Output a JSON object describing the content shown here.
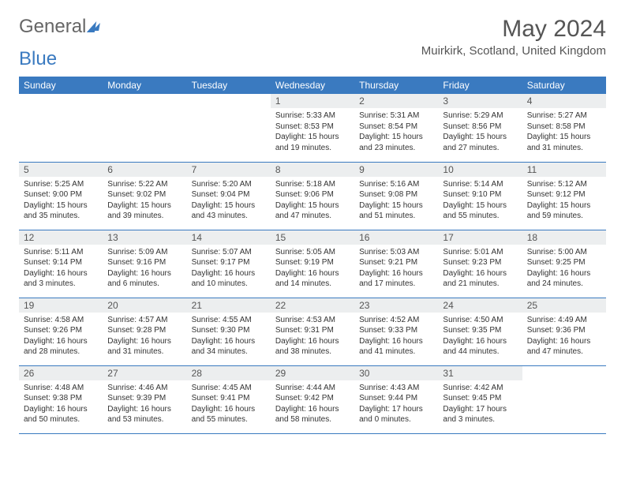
{
  "logo": {
    "part1": "General",
    "part2": "Blue"
  },
  "title": "May 2024",
  "location": "Muirkirk, Scotland, United Kingdom",
  "colors": {
    "accent": "#3a7ac0",
    "headerbg": "#3a7ac0",
    "daynum_bg": "#eceeef",
    "text": "#333333"
  },
  "weekdays": [
    "Sunday",
    "Monday",
    "Tuesday",
    "Wednesday",
    "Thursday",
    "Friday",
    "Saturday"
  ],
  "grid": [
    [
      {
        "n": "",
        "sr": "",
        "ss": "",
        "dl": ""
      },
      {
        "n": "",
        "sr": "",
        "ss": "",
        "dl": ""
      },
      {
        "n": "",
        "sr": "",
        "ss": "",
        "dl": ""
      },
      {
        "n": "1",
        "sr": "Sunrise: 5:33 AM",
        "ss": "Sunset: 8:53 PM",
        "dl": "Daylight: 15 hours and 19 minutes."
      },
      {
        "n": "2",
        "sr": "Sunrise: 5:31 AM",
        "ss": "Sunset: 8:54 PM",
        "dl": "Daylight: 15 hours and 23 minutes."
      },
      {
        "n": "3",
        "sr": "Sunrise: 5:29 AM",
        "ss": "Sunset: 8:56 PM",
        "dl": "Daylight: 15 hours and 27 minutes."
      },
      {
        "n": "4",
        "sr": "Sunrise: 5:27 AM",
        "ss": "Sunset: 8:58 PM",
        "dl": "Daylight: 15 hours and 31 minutes."
      }
    ],
    [
      {
        "n": "5",
        "sr": "Sunrise: 5:25 AM",
        "ss": "Sunset: 9:00 PM",
        "dl": "Daylight: 15 hours and 35 minutes."
      },
      {
        "n": "6",
        "sr": "Sunrise: 5:22 AM",
        "ss": "Sunset: 9:02 PM",
        "dl": "Daylight: 15 hours and 39 minutes."
      },
      {
        "n": "7",
        "sr": "Sunrise: 5:20 AM",
        "ss": "Sunset: 9:04 PM",
        "dl": "Daylight: 15 hours and 43 minutes."
      },
      {
        "n": "8",
        "sr": "Sunrise: 5:18 AM",
        "ss": "Sunset: 9:06 PM",
        "dl": "Daylight: 15 hours and 47 minutes."
      },
      {
        "n": "9",
        "sr": "Sunrise: 5:16 AM",
        "ss": "Sunset: 9:08 PM",
        "dl": "Daylight: 15 hours and 51 minutes."
      },
      {
        "n": "10",
        "sr": "Sunrise: 5:14 AM",
        "ss": "Sunset: 9:10 PM",
        "dl": "Daylight: 15 hours and 55 minutes."
      },
      {
        "n": "11",
        "sr": "Sunrise: 5:12 AM",
        "ss": "Sunset: 9:12 PM",
        "dl": "Daylight: 15 hours and 59 minutes."
      }
    ],
    [
      {
        "n": "12",
        "sr": "Sunrise: 5:11 AM",
        "ss": "Sunset: 9:14 PM",
        "dl": "Daylight: 16 hours and 3 minutes."
      },
      {
        "n": "13",
        "sr": "Sunrise: 5:09 AM",
        "ss": "Sunset: 9:16 PM",
        "dl": "Daylight: 16 hours and 6 minutes."
      },
      {
        "n": "14",
        "sr": "Sunrise: 5:07 AM",
        "ss": "Sunset: 9:17 PM",
        "dl": "Daylight: 16 hours and 10 minutes."
      },
      {
        "n": "15",
        "sr": "Sunrise: 5:05 AM",
        "ss": "Sunset: 9:19 PM",
        "dl": "Daylight: 16 hours and 14 minutes."
      },
      {
        "n": "16",
        "sr": "Sunrise: 5:03 AM",
        "ss": "Sunset: 9:21 PM",
        "dl": "Daylight: 16 hours and 17 minutes."
      },
      {
        "n": "17",
        "sr": "Sunrise: 5:01 AM",
        "ss": "Sunset: 9:23 PM",
        "dl": "Daylight: 16 hours and 21 minutes."
      },
      {
        "n": "18",
        "sr": "Sunrise: 5:00 AM",
        "ss": "Sunset: 9:25 PM",
        "dl": "Daylight: 16 hours and 24 minutes."
      }
    ],
    [
      {
        "n": "19",
        "sr": "Sunrise: 4:58 AM",
        "ss": "Sunset: 9:26 PM",
        "dl": "Daylight: 16 hours and 28 minutes."
      },
      {
        "n": "20",
        "sr": "Sunrise: 4:57 AM",
        "ss": "Sunset: 9:28 PM",
        "dl": "Daylight: 16 hours and 31 minutes."
      },
      {
        "n": "21",
        "sr": "Sunrise: 4:55 AM",
        "ss": "Sunset: 9:30 PM",
        "dl": "Daylight: 16 hours and 34 minutes."
      },
      {
        "n": "22",
        "sr": "Sunrise: 4:53 AM",
        "ss": "Sunset: 9:31 PM",
        "dl": "Daylight: 16 hours and 38 minutes."
      },
      {
        "n": "23",
        "sr": "Sunrise: 4:52 AM",
        "ss": "Sunset: 9:33 PM",
        "dl": "Daylight: 16 hours and 41 minutes."
      },
      {
        "n": "24",
        "sr": "Sunrise: 4:50 AM",
        "ss": "Sunset: 9:35 PM",
        "dl": "Daylight: 16 hours and 44 minutes."
      },
      {
        "n": "25",
        "sr": "Sunrise: 4:49 AM",
        "ss": "Sunset: 9:36 PM",
        "dl": "Daylight: 16 hours and 47 minutes."
      }
    ],
    [
      {
        "n": "26",
        "sr": "Sunrise: 4:48 AM",
        "ss": "Sunset: 9:38 PM",
        "dl": "Daylight: 16 hours and 50 minutes."
      },
      {
        "n": "27",
        "sr": "Sunrise: 4:46 AM",
        "ss": "Sunset: 9:39 PM",
        "dl": "Daylight: 16 hours and 53 minutes."
      },
      {
        "n": "28",
        "sr": "Sunrise: 4:45 AM",
        "ss": "Sunset: 9:41 PM",
        "dl": "Daylight: 16 hours and 55 minutes."
      },
      {
        "n": "29",
        "sr": "Sunrise: 4:44 AM",
        "ss": "Sunset: 9:42 PM",
        "dl": "Daylight: 16 hours and 58 minutes."
      },
      {
        "n": "30",
        "sr": "Sunrise: 4:43 AM",
        "ss": "Sunset: 9:44 PM",
        "dl": "Daylight: 17 hours and 0 minutes."
      },
      {
        "n": "31",
        "sr": "Sunrise: 4:42 AM",
        "ss": "Sunset: 9:45 PM",
        "dl": "Daylight: 17 hours and 3 minutes."
      },
      {
        "n": "",
        "sr": "",
        "ss": "",
        "dl": ""
      }
    ]
  ]
}
